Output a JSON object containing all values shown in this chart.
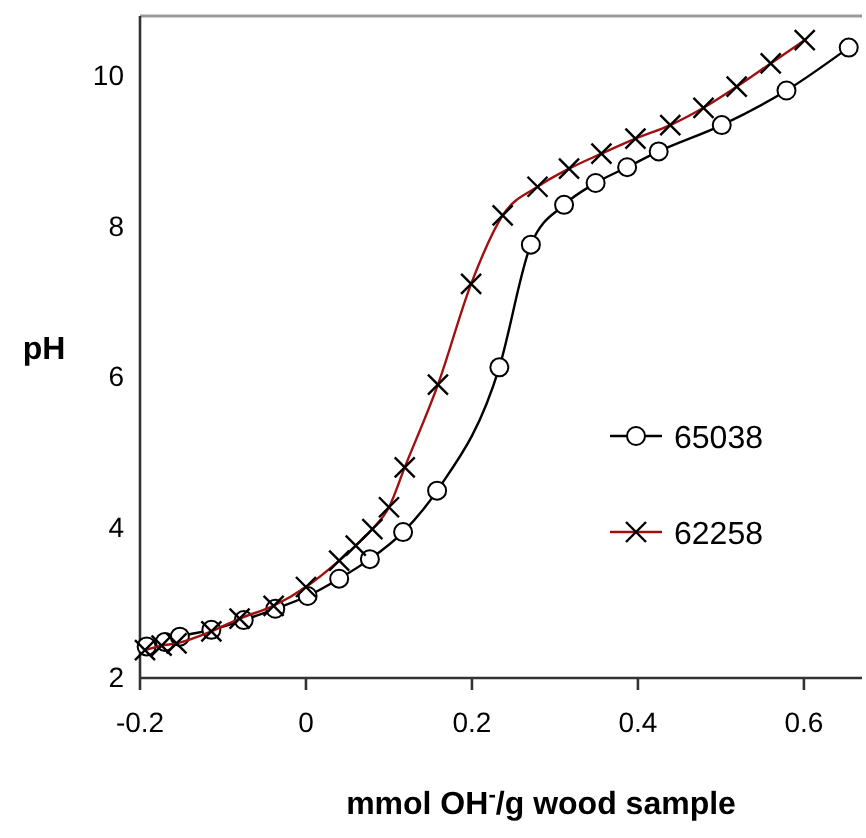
{
  "chart_data": {
    "type": "line",
    "xlabel": "mmol OH$^{-}$/g wood sample",
    "ylabel": "pH",
    "xlim": [
      -0.2,
      0.67
    ],
    "xticks": [
      -0.2,
      0,
      0.2,
      0.4,
      0.6
    ],
    "ylim": [
      2,
      10.8
    ],
    "yticks": [
      2,
      4,
      6,
      8,
      10
    ],
    "grid": false,
    "legend": "right",
    "series": [
      {
        "name": "65038",
        "color": "#000000",
        "marker": "circle",
        "x": [
          -0.192,
          -0.17,
          -0.152,
          -0.114,
          -0.075,
          -0.037,
          0.002,
          0.04,
          0.077,
          0.117,
          0.158,
          0.233,
          0.271,
          0.311,
          0.349,
          0.387,
          0.425,
          0.501,
          0.579,
          0.654
        ],
        "values": [
          2.42,
          2.48,
          2.55,
          2.64,
          2.77,
          2.92,
          3.09,
          3.32,
          3.58,
          3.94,
          4.49,
          6.13,
          7.76,
          8.29,
          8.58,
          8.79,
          9.0,
          9.35,
          9.81,
          10.38
        ]
      },
      {
        "name": "62258",
        "color": "#a01010",
        "marker": "cross",
        "x": [
          -0.194,
          -0.174,
          -0.156,
          -0.114,
          -0.08,
          -0.039,
          0.0,
          0.04,
          0.06,
          0.08,
          0.1,
          0.119,
          0.159,
          0.199,
          0.237,
          0.279,
          0.317,
          0.356,
          0.397,
          0.439,
          0.479,
          0.519,
          0.56,
          0.601
        ],
        "values": [
          2.37,
          2.43,
          2.46,
          2.62,
          2.79,
          2.96,
          3.21,
          3.56,
          3.76,
          3.98,
          4.27,
          4.8,
          5.9,
          7.24,
          8.15,
          8.53,
          8.77,
          8.97,
          9.17,
          9.35,
          9.58,
          9.86,
          10.17,
          10.48
        ]
      }
    ]
  }
}
